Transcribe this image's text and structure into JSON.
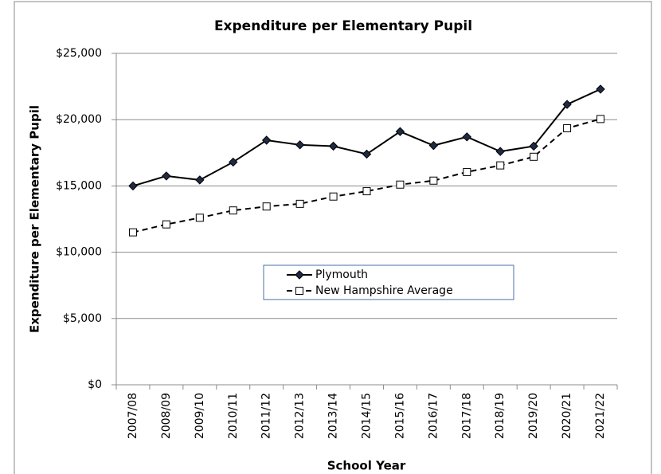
{
  "chart_data": {
    "type": "line",
    "title": "Expenditure per Elementary Pupil",
    "x_label": "School Year",
    "y_label": "Expenditure per Elementary Pupil",
    "categories": [
      "2007/08",
      "2008/09",
      "2009/10",
      "2010/11",
      "2011/12",
      "2012/13",
      "2013/14",
      "2014/15",
      "2015/16",
      "2016/17",
      "2017/18",
      "2018/19",
      "2019/20",
      "2020/21",
      "2021/22"
    ],
    "series": [
      {
        "name": "Plymouth",
        "color": "#000000",
        "marker": "diamond",
        "dashed": false,
        "values": [
          15000,
          15750,
          15450,
          16800,
          18450,
          18100,
          18000,
          17400,
          19100,
          18050,
          18700,
          17600,
          18000,
          21150,
          22300
        ]
      },
      {
        "name": "New Hampshire Average",
        "color": "#000000",
        "marker": "square",
        "dashed": true,
        "values": [
          11500,
          12100,
          12600,
          13150,
          13450,
          13650,
          14200,
          14600,
          15100,
          15400,
          16050,
          16550,
          17200,
          19350,
          20050
        ]
      }
    ],
    "ylim": [
      0,
      25000
    ],
    "yticks": [
      {
        "value": 0,
        "label": "$0"
      },
      {
        "value": 5000,
        "label": "$5,000"
      },
      {
        "value": 10000,
        "label": "$10,000"
      },
      {
        "value": 15000,
        "label": "$15,000"
      },
      {
        "value": 20000,
        "label": "$20,000"
      },
      {
        "value": 25000,
        "label": "$25,000"
      }
    ],
    "grid": true,
    "legend": "center"
  }
}
